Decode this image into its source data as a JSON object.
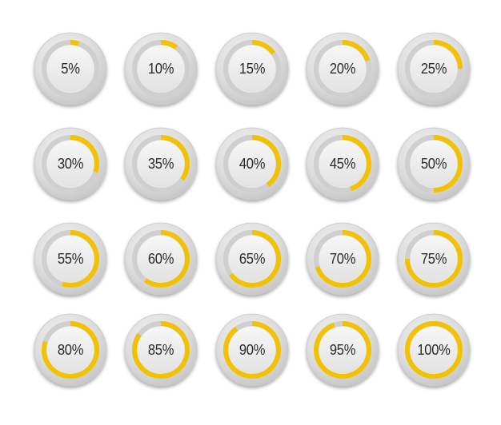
{
  "colors": {
    "progress": "#f2c200",
    "track": "#cfcfcf"
  },
  "gauges": [
    {
      "label": "5%",
      "value": 5
    },
    {
      "label": "10%",
      "value": 10
    },
    {
      "label": "15%",
      "value": 15
    },
    {
      "label": "20%",
      "value": 20
    },
    {
      "label": "25%",
      "value": 25
    },
    {
      "label": "30%",
      "value": 30
    },
    {
      "label": "35%",
      "value": 35
    },
    {
      "label": "40%",
      "value": 40
    },
    {
      "label": "45%",
      "value": 45
    },
    {
      "label": "50%",
      "value": 50
    },
    {
      "label": "55%",
      "value": 55
    },
    {
      "label": "60%",
      "value": 60
    },
    {
      "label": "65%",
      "value": 65
    },
    {
      "label": "70%",
      "value": 70
    },
    {
      "label": "75%",
      "value": 75
    },
    {
      "label": "80%",
      "value": 80
    },
    {
      "label": "85%",
      "value": 85
    },
    {
      "label": "90%",
      "value": 90
    },
    {
      "label": "95%",
      "value": 95
    },
    {
      "label": "100%",
      "value": 100
    }
  ]
}
